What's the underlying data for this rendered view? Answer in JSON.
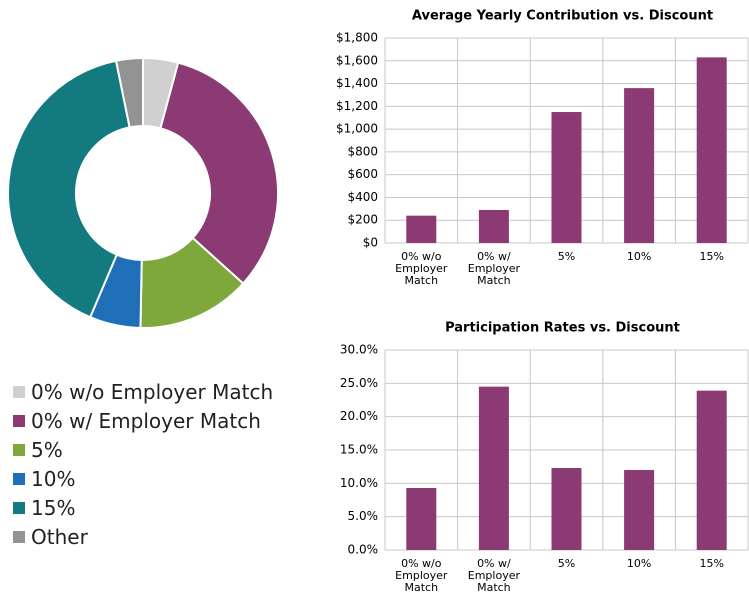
{
  "chart_data": [
    {
      "type": "pie",
      "categories": [
        "0% w/o Employer Match",
        "0% w/ Employer Match",
        "5%",
        "10%",
        "15%",
        "Other"
      ],
      "values": [
        4.2,
        32.5,
        13.6,
        6.1,
        40.4,
        3.2
      ],
      "colors": [
        "#d0d0d0",
        "#8b3a74",
        "#7ea73c",
        "#1f6fb8",
        "#137a80",
        "#939393"
      ],
      "legend": "bottom"
    },
    {
      "type": "bar",
      "title": "Average Yearly Contribution vs. Discount",
      "categories": [
        "0% w/o Employer Match",
        "0% w/ Employer Match",
        "5%",
        "10%",
        "15%"
      ],
      "values": [
        240,
        290,
        1150,
        1360,
        1630
      ],
      "color": "#8b3a74",
      "ylim": [
        0,
        1800
      ],
      "yticks": [
        {
          "value": 0,
          "label": "$0"
        },
        {
          "value": 200,
          "label": "$200"
        },
        {
          "value": 400,
          "label": "$400"
        },
        {
          "value": 600,
          "label": "$600"
        },
        {
          "value": 800,
          "label": "$800"
        },
        {
          "value": 1000,
          "label": "$1,000"
        },
        {
          "value": 1200,
          "label": "$1,200"
        },
        {
          "value": 1400,
          "label": "$1,400"
        },
        {
          "value": 1600,
          "label": "$1,600"
        },
        {
          "value": 1800,
          "label": "$1,800"
        }
      ],
      "grid": true
    },
    {
      "type": "bar",
      "title": "Participation Rates vs. Discount",
      "categories": [
        "0% w/o Employer Match",
        "0% w/ Employer Match",
        "5%",
        "10%",
        "15%"
      ],
      "values": [
        9.3,
        24.5,
        12.3,
        12.0,
        23.9
      ],
      "color": "#8b3a74",
      "ylim": [
        0,
        30
      ],
      "yticks": [
        {
          "value": 0,
          "label": "0.0%"
        },
        {
          "value": 5,
          "label": "5.0%"
        },
        {
          "value": 10,
          "label": "10.0%"
        },
        {
          "value": 15,
          "label": "15.0%"
        },
        {
          "value": 20,
          "label": "20.0%"
        },
        {
          "value": 25,
          "label": "25.0%"
        },
        {
          "value": 30,
          "label": "30.0%"
        }
      ],
      "grid": true
    }
  ]
}
